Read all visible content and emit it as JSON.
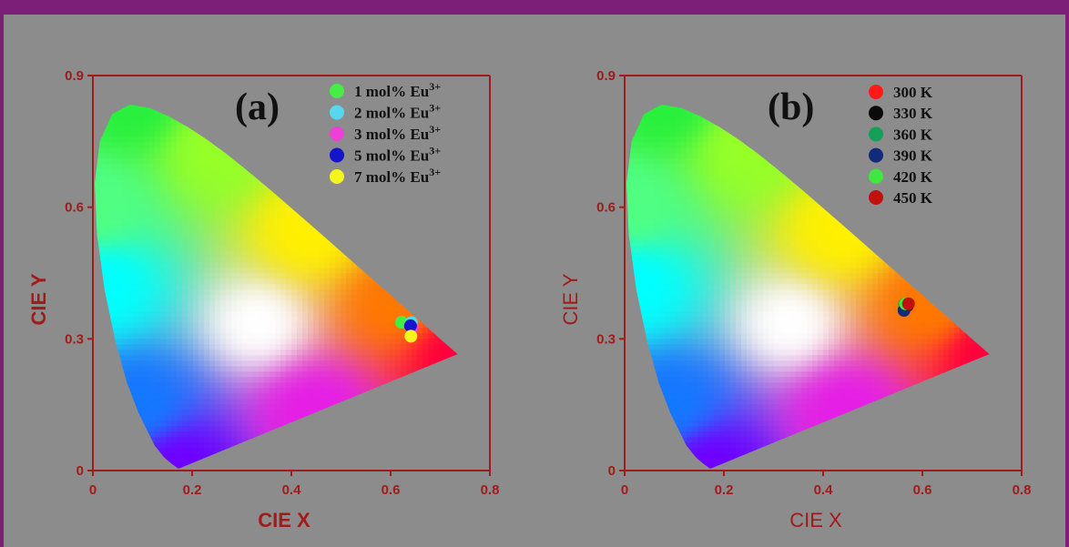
{
  "colors": {
    "frame": "#7b1f78",
    "background": "#8c8c8c",
    "axis": "#a01c1c",
    "legend_text": "#111111"
  },
  "chart_data": [
    {
      "type": "scatter",
      "panel_label": "(a)",
      "xlabel": "CIE X",
      "ylabel": "CIE Y",
      "xlim": [
        0,
        0.8
      ],
      "ylim": [
        0,
        0.9
      ],
      "x_ticks": [
        "0",
        "0.2",
        "0.4",
        "0.6",
        "0.8"
      ],
      "y_ticks": [
        "0",
        "0.3",
        "0.6",
        "0.9"
      ],
      "grid": false,
      "legend_position": "top-right",
      "series": [
        {
          "name": "1 mol% Eu",
          "sup": "3+",
          "color": "#44ee44",
          "x": 0.622,
          "y": 0.338
        },
        {
          "name": "2 mol% Eu",
          "sup": "3+",
          "color": "#55d8ee",
          "x": 0.642,
          "y": 0.337
        },
        {
          "name": "3 mol% Eu",
          "sup": "3+",
          "color": "#ee3fd6",
          "x": 0.643,
          "y": 0.326
        },
        {
          "name": "5 mol% Eu",
          "sup": "3+",
          "color": "#1414c8",
          "x": 0.64,
          "y": 0.33
        },
        {
          "name": "7 mol% Eu",
          "sup": "3+",
          "color": "#f5f51e",
          "x": 0.641,
          "y": 0.306
        }
      ]
    },
    {
      "type": "scatter",
      "panel_label": "(b)",
      "xlabel": "CIE X",
      "ylabel": "CIE Y",
      "xlim": [
        0,
        0.8
      ],
      "ylim": [
        0,
        0.9
      ],
      "x_ticks": [
        "0",
        "0.2",
        "0.4",
        "0.6",
        "0.8"
      ],
      "y_ticks": [
        "0",
        "0.3",
        "0.6",
        "0.9"
      ],
      "grid": false,
      "legend_position": "top-right",
      "series": [
        {
          "name": "300 K",
          "sup": "",
          "color": "#ff1a1a",
          "x": 0.568,
          "y": 0.378
        },
        {
          "name": "330 K",
          "sup": "",
          "color": "#0a0a0a",
          "x": 0.57,
          "y": 0.376
        },
        {
          "name": "360 K",
          "sup": "",
          "color": "#15a05a",
          "x": 0.564,
          "y": 0.379
        },
        {
          "name": "390 K",
          "sup": "",
          "color": "#122a7a",
          "x": 0.563,
          "y": 0.365
        },
        {
          "name": "420 K",
          "sup": "",
          "color": "#3ee83e",
          "x": 0.566,
          "y": 0.38
        },
        {
          "name": "450 K",
          "sup": "",
          "color": "#c01010",
          "x": 0.572,
          "y": 0.38
        }
      ]
    }
  ]
}
